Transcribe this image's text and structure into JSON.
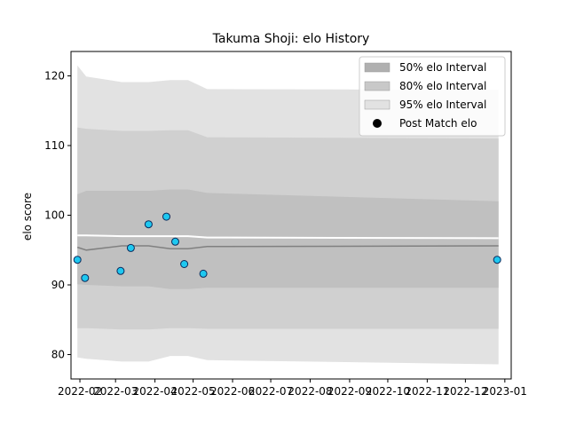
{
  "chart_data": {
    "type": "area",
    "title": "Takuma Shoji: elo History",
    "xlabel": "",
    "ylabel": "elo score",
    "xlim": [
      "2022-01-25",
      "2023-01-06"
    ],
    "ylim": [
      76.5,
      123.5
    ],
    "x_ticks": [
      "2022-02",
      "2022-03",
      "2022-04",
      "2022-05",
      "2022-06",
      "2022-07",
      "2022-08",
      "2022-09",
      "2022-10",
      "2022-11",
      "2022-12",
      "2023-01"
    ],
    "y_ticks": [
      80,
      90,
      100,
      110,
      120
    ],
    "legend_position": "top-right",
    "legend": [
      {
        "label": "50% elo Interval",
        "kind": "patch",
        "color": "#b0b0b0"
      },
      {
        "label": "80% elo Interval",
        "kind": "patch",
        "color": "#c8c8c8"
      },
      {
        "label": "95% elo Interval",
        "kind": "patch",
        "color": "#e2e2e2"
      },
      {
        "label": "Post Match elo",
        "kind": "marker",
        "color": "#000000"
      }
    ],
    "colors": {
      "band95": "#e2e2e2",
      "band80": "#d0d0d0",
      "band50": "#c0c0c0",
      "median": "#808080",
      "mean": "#ffffff",
      "point_fill": "#1ec8f0",
      "point_edge": "#0a2a5c"
    },
    "intervals": {
      "x": [
        "2022-01-30",
        "2022-02-06",
        "2022-03-06",
        "2022-03-27",
        "2022-04-13",
        "2022-04-27",
        "2022-05-12",
        "2022-12-27"
      ],
      "band95": {
        "low": [
          79.6,
          79.4,
          79.0,
          79.0,
          79.8,
          79.8,
          79.2,
          78.6
        ],
        "high": [
          121.5,
          119.9,
          119.1,
          119.1,
          119.4,
          119.4,
          118.1,
          118.0
        ]
      },
      "band80": {
        "low": [
          83.8,
          83.8,
          83.6,
          83.6,
          83.8,
          83.8,
          83.7,
          83.7
        ],
        "high": [
          112.6,
          112.4,
          112.1,
          112.1,
          112.2,
          112.2,
          111.2,
          111.0
        ]
      },
      "band50": {
        "low": [
          90.1,
          90.0,
          89.8,
          89.8,
          89.4,
          89.4,
          89.6,
          89.6
        ],
        "high": [
          103.0,
          103.5,
          103.5,
          103.5,
          103.7,
          103.7,
          103.2,
          102.0
        ]
      },
      "median": [
        95.4,
        95.0,
        95.6,
        95.6,
        95.2,
        95.2,
        95.5,
        95.6
      ],
      "mean": [
        97.1,
        97.1,
        97.0,
        97.0,
        97.0,
        97.0,
        96.8,
        96.7
      ]
    },
    "series": [
      {
        "name": "Post Match elo",
        "points": [
          {
            "x": "2022-01-30",
            "y": 93.6
          },
          {
            "x": "2022-02-05",
            "y": 91.0
          },
          {
            "x": "2022-03-05",
            "y": 92.0
          },
          {
            "x": "2022-03-13",
            "y": 95.3
          },
          {
            "x": "2022-03-27",
            "y": 98.7
          },
          {
            "x": "2022-04-10",
            "y": 99.8
          },
          {
            "x": "2022-04-17",
            "y": 96.2
          },
          {
            "x": "2022-04-24",
            "y": 93.0
          },
          {
            "x": "2022-05-09",
            "y": 91.6
          },
          {
            "x": "2022-12-26",
            "y": 93.6
          }
        ]
      }
    ]
  }
}
